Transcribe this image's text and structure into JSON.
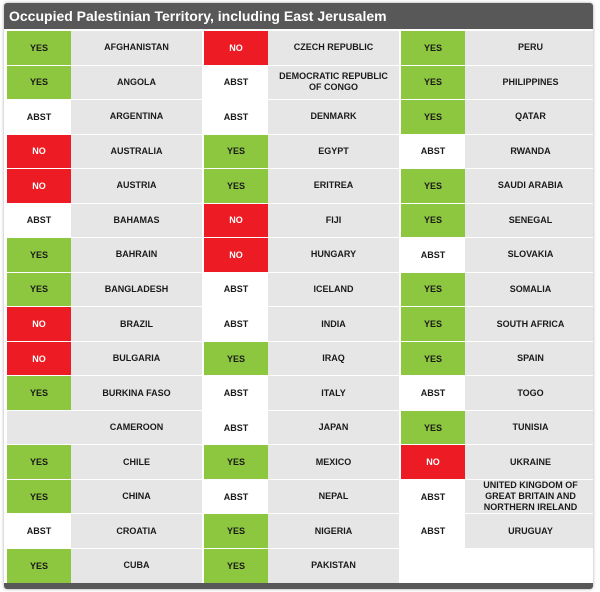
{
  "title": "Occupied Palestinian Territory, including East Jerusalem",
  "colors": {
    "yes": "#8dc63f",
    "no": "#ed1c24",
    "abst": "#ffffff",
    "header": "#585858",
    "country_bg": "#e6e6e6"
  },
  "columns": [
    [
      {
        "status": "YES",
        "country": "AFGHANISTAN"
      },
      {
        "status": "YES",
        "country": "ANGOLA"
      },
      {
        "status": "ABST",
        "country": "ARGENTINA"
      },
      {
        "status": "NO",
        "country": "AUSTRALIA"
      },
      {
        "status": "NO",
        "country": "AUSTRIA"
      },
      {
        "status": "ABST",
        "country": "BAHAMAS"
      },
      {
        "status": "YES",
        "country": "BAHRAIN"
      },
      {
        "status": "YES",
        "country": "BANGLADESH"
      },
      {
        "status": "NO",
        "country": "BRAZIL"
      },
      {
        "status": "NO",
        "country": "BULGARIA"
      },
      {
        "status": "YES",
        "country": "BURKINA FASO"
      },
      {
        "status": "",
        "country": "CAMEROON"
      },
      {
        "status": "YES",
        "country": "CHILE"
      },
      {
        "status": "YES",
        "country": "CHINA"
      },
      {
        "status": "ABST",
        "country": "CROATIA"
      },
      {
        "status": "YES",
        "country": "CUBA"
      }
    ],
    [
      {
        "status": "NO",
        "country": "CZECH REPUBLIC"
      },
      {
        "status": "ABST",
        "country": "DEMOCRATIC REPUBLIC OF CONGO"
      },
      {
        "status": "ABST",
        "country": "DENMARK"
      },
      {
        "status": "YES",
        "country": "EGYPT"
      },
      {
        "status": "YES",
        "country": "ERITREA"
      },
      {
        "status": "NO",
        "country": "FIJI"
      },
      {
        "status": "NO",
        "country": "HUNGARY"
      },
      {
        "status": "ABST",
        "country": "ICELAND"
      },
      {
        "status": "ABST",
        "country": "INDIA"
      },
      {
        "status": "YES",
        "country": "IRAQ"
      },
      {
        "status": "ABST",
        "country": "ITALY"
      },
      {
        "status": "ABST",
        "country": "JAPAN"
      },
      {
        "status": "YES",
        "country": "MEXICO"
      },
      {
        "status": "ABST",
        "country": "NEPAL"
      },
      {
        "status": "YES",
        "country": "NIGERIA"
      },
      {
        "status": "YES",
        "country": "PAKISTAN"
      }
    ],
    [
      {
        "status": "YES",
        "country": "PERU"
      },
      {
        "status": "YES",
        "country": "PHILIPPINES"
      },
      {
        "status": "YES",
        "country": "QATAR"
      },
      {
        "status": "ABST",
        "country": "RWANDA"
      },
      {
        "status": "YES",
        "country": "SAUDI ARABIA"
      },
      {
        "status": "YES",
        "country": "SENEGAL"
      },
      {
        "status": "ABST",
        "country": "SLOVAKIA"
      },
      {
        "status": "YES",
        "country": "SOMALIA"
      },
      {
        "status": "YES",
        "country": "SOUTH AFRICA"
      },
      {
        "status": "YES",
        "country": "SPAIN"
      },
      {
        "status": "ABST",
        "country": "TOGO"
      },
      {
        "status": "YES",
        "country": "TUNISIA"
      },
      {
        "status": "NO",
        "country": "UKRAINE"
      },
      {
        "status": "ABST",
        "country": "UNITED KINGDOM OF GREAT BRITAIN AND NORTHERN IRELAND"
      },
      {
        "status": "ABST",
        "country": "URUGUAY"
      }
    ]
  ]
}
